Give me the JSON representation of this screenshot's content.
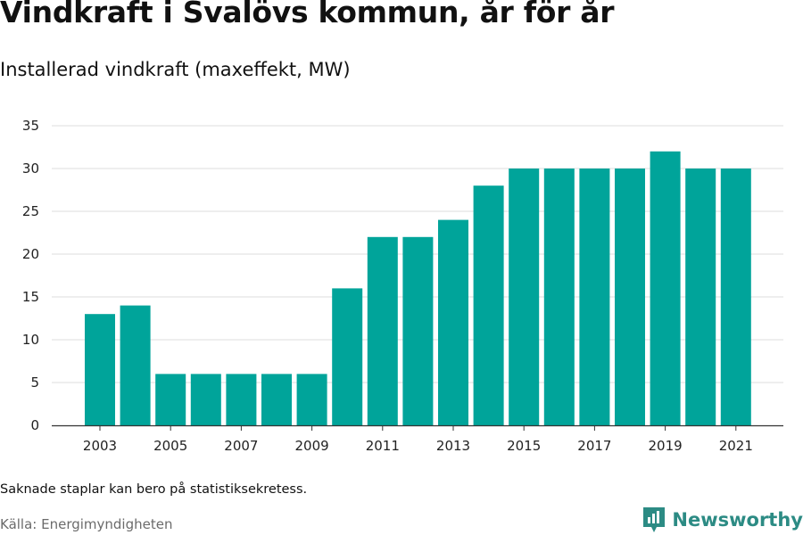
{
  "title": "Vindkraft i Svalövs kommun, år för år",
  "subtitle": "Installerad vindkraft (maxeffekt, MW)",
  "note": "Saknade staplar kan bero på statistiksekretess.",
  "source": "Källa: Energimyndigheten",
  "brand": {
    "name": "Newsworthy",
    "icon": "newsworthy-logo-icon",
    "color": "#2c8b84"
  },
  "colors": {
    "bar": "#00a49a",
    "grid": "#dddddd",
    "axis": "#333333"
  },
  "chart_data": {
    "type": "bar",
    "title": "Vindkraft i Svalövs kommun, år för år",
    "subtitle": "Installerad vindkraft (maxeffekt, MW)",
    "xlabel": "",
    "ylabel": "",
    "categories": [
      "2003",
      "2004",
      "2005",
      "2006",
      "2007",
      "2008",
      "2009",
      "2010",
      "2011",
      "2012",
      "2013",
      "2014",
      "2015",
      "2016",
      "2017",
      "2018",
      "2019",
      "2020",
      "2021"
    ],
    "values": [
      13,
      14,
      6,
      6,
      6,
      6,
      6,
      16,
      22,
      22,
      24,
      28,
      30,
      30,
      30,
      30,
      32,
      30,
      30
    ],
    "x_tick_labels": [
      "2003",
      "2005",
      "2007",
      "2009",
      "2011",
      "2013",
      "2015",
      "2017",
      "2019",
      "2021"
    ],
    "y_ticks": [
      0,
      5,
      10,
      15,
      20,
      25,
      30,
      35
    ],
    "ylim": [
      0,
      35
    ],
    "grid": true,
    "legend": "none"
  }
}
